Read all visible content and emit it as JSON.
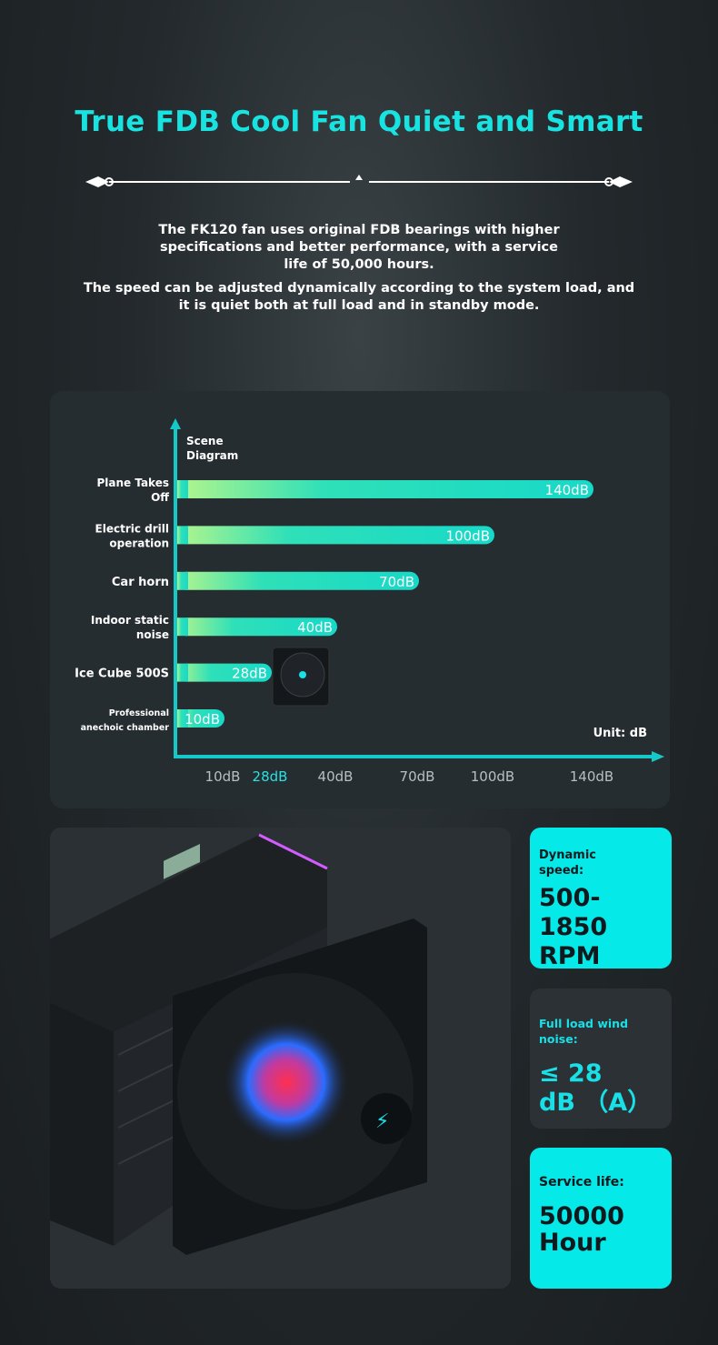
{
  "header": {
    "title": "True FDB Cool Fan Quiet and Smart",
    "desc1": [
      "The FK120 fan uses original FDB bearings with higher",
      "specifications and better performance, with a service",
      "life of 50,000 hours."
    ],
    "desc2": [
      "The speed can be adjusted dynamically according to the system load, and",
      "it is quiet both at full load and in standby mode."
    ]
  },
  "chart_data": {
    "type": "bar",
    "orientation": "horizontal",
    "ylabel": [
      "Scene",
      "Diagram"
    ],
    "unit_label": "Unit: dB",
    "categories": [
      [
        "Plane Takes",
        "Off"
      ],
      [
        "Electric drill",
        "operation"
      ],
      [
        "Car horn"
      ],
      [
        "Indoor static",
        "noise"
      ],
      [
        "Ice Cube 500S"
      ],
      [
        "Professional",
        "anechoic chamber"
      ]
    ],
    "values": [
      140,
      100,
      70,
      40,
      28,
      10
    ],
    "value_labels": [
      "140dB",
      "100dB",
      "70dB",
      "40dB",
      "28dB",
      "10dB"
    ],
    "xticks": [
      10,
      28,
      40,
      70,
      100,
      140
    ],
    "xtick_labels": [
      "10dB",
      "28dB",
      "40dB",
      "70dB",
      "100dB",
      "140dB"
    ],
    "highlight_tick": "28dB",
    "colors": {
      "bar_start": "#b4f58c",
      "bar_end": "#17d9c8",
      "axis": "#16c9c9",
      "highlight": "#2be0e0",
      "tick": "#b8bec2"
    }
  },
  "specs": [
    {
      "label": [
        "Dynamic",
        "speed:"
      ],
      "value": [
        "500-1850",
        "RPM"
      ]
    },
    {
      "label": [
        "Full load wind noise:"
      ],
      "value": [
        "≤ 28",
        "dB （A）"
      ]
    },
    {
      "label": [
        "Service life:"
      ],
      "value": [
        "50000",
        "Hour"
      ]
    }
  ]
}
